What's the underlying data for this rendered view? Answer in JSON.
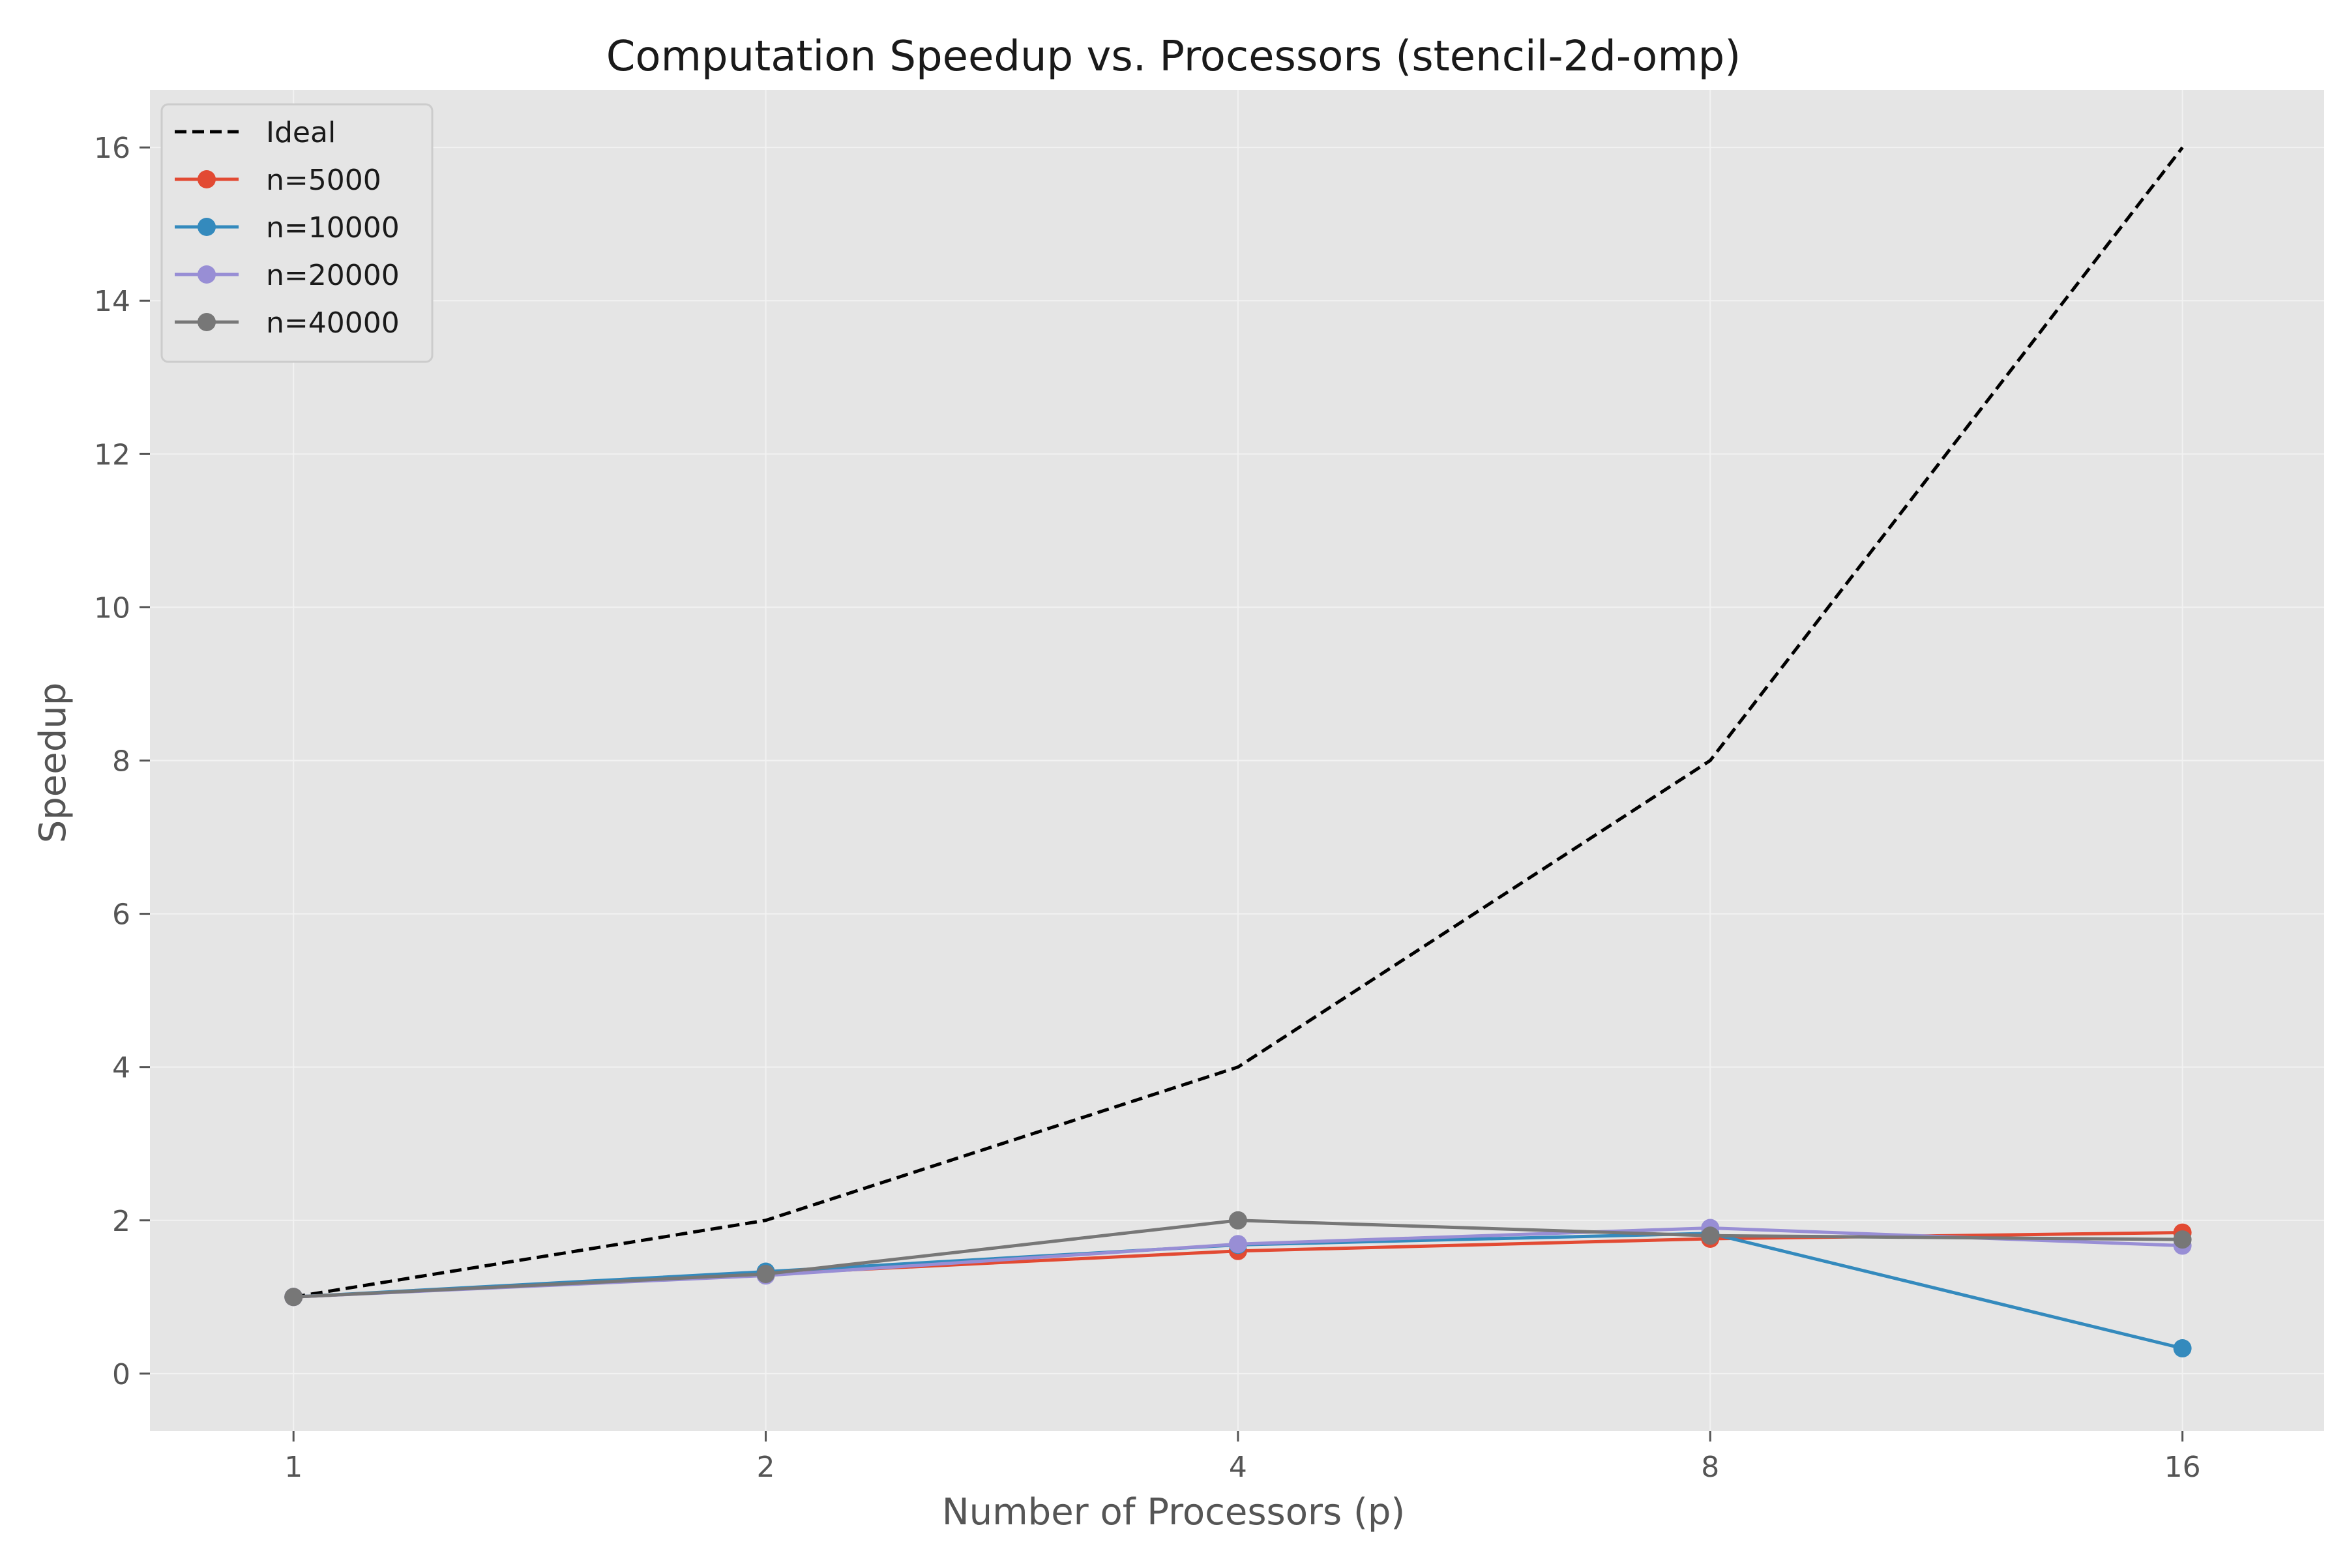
{
  "chart_data": {
    "type": "line",
    "title": "Computation Speedup vs. Processors (stencil-2d-omp)",
    "xlabel": "Number of Processors (p)",
    "ylabel": "Speedup",
    "x_scale": "log2",
    "x": [
      1,
      2,
      4,
      8,
      16
    ],
    "x_tick_labels": [
      "1",
      "2",
      "4",
      "8",
      "16"
    ],
    "y_ticks": [
      0,
      2,
      4,
      6,
      8,
      10,
      12,
      14,
      16
    ],
    "y_tick_labels": [
      "0",
      "2",
      "4",
      "6",
      "8",
      "10",
      "12",
      "14",
      "16"
    ],
    "xlim": [
      0.81,
      19.7
    ],
    "ylim": [
      -0.75,
      16.75
    ],
    "grid": true,
    "legend_position": "top-left",
    "series": [
      {
        "name": "Ideal",
        "values": [
          1,
          2,
          4,
          8,
          16
        ],
        "color": "#000000",
        "style": "dashed",
        "marker": "none"
      },
      {
        "name": "n=5000",
        "values": [
          1.0,
          1.3,
          1.6,
          1.76,
          1.84
        ],
        "color": "#e24a33",
        "style": "solid",
        "marker": "circle"
      },
      {
        "name": "n=10000",
        "values": [
          1.0,
          1.33,
          1.68,
          1.83,
          0.33
        ],
        "color": "#348abd",
        "style": "solid",
        "marker": "circle"
      },
      {
        "name": "n=20000",
        "values": [
          1.0,
          1.28,
          1.69,
          1.9,
          1.67
        ],
        "color": "#988ed5",
        "style": "solid",
        "marker": "circle"
      },
      {
        "name": "n=40000",
        "values": [
          1.0,
          1.3,
          2.0,
          1.8,
          1.75
        ],
        "color": "#777777",
        "style": "solid",
        "marker": "circle"
      }
    ],
    "colors": {
      "plot_background": "#e5e5e5",
      "grid": "#f2f2f2",
      "legend_background": "#e5e5e5",
      "legend_border": "#cccccc"
    }
  }
}
